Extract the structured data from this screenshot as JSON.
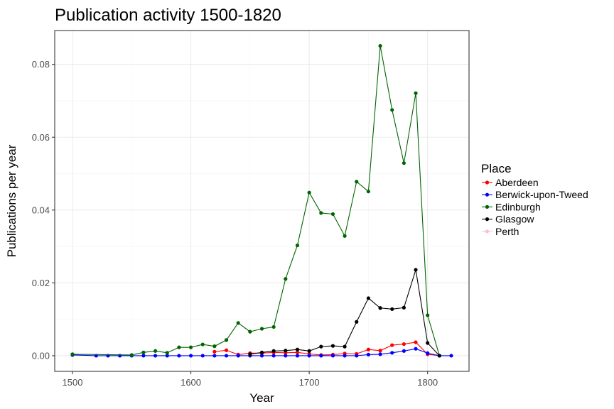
{
  "chart_data": {
    "type": "line",
    "title": "Publication activity 1500-1820",
    "xlabel": "Year",
    "ylabel": "Publications per year",
    "xlim": [
      1485,
      1835
    ],
    "ylim": [
      -0.0043,
      0.0893
    ],
    "x_ticks": [
      1500,
      1600,
      1700,
      1800
    ],
    "x_tick_labels": [
      "1500",
      "1600",
      "1700",
      "1800"
    ],
    "y_ticks": [
      0,
      0.02,
      0.04,
      0.06,
      0.08
    ],
    "y_tick_labels": [
      "0.00",
      "0.02",
      "0.04",
      "0.06",
      "0.08"
    ],
    "grid": true,
    "legend": {
      "title": "Place",
      "position": "right"
    },
    "series": [
      {
        "name": "Aberdeen",
        "color": "#ff0000",
        "x": [
          1620,
          1630,
          1640,
          1650,
          1660,
          1670,
          1680,
          1690,
          1700,
          1710,
          1720,
          1730,
          1740,
          1750,
          1760,
          1770,
          1780,
          1790,
          1800,
          1810
        ],
        "y": [
          0.0011,
          0.0015,
          0.0003,
          0.0007,
          0.0007,
          0.0009,
          0.0008,
          0.0009,
          0.0005,
          0.0002,
          0.0003,
          0.0006,
          0.0005,
          0.0017,
          0.0014,
          0.0029,
          0.0032,
          0.0037,
          0.0004,
          0.0
        ]
      },
      {
        "name": "Berwick-upon-Tweed",
        "color": "#0000ff",
        "x": [
          1500,
          1520,
          1530,
          1540,
          1550,
          1560,
          1570,
          1580,
          1590,
          1600,
          1610,
          1620,
          1630,
          1640,
          1650,
          1660,
          1670,
          1680,
          1690,
          1700,
          1710,
          1720,
          1730,
          1740,
          1750,
          1760,
          1770,
          1780,
          1790,
          1800,
          1810,
          1820
        ],
        "y": [
          0.0002,
          0.0,
          0.0,
          0.0,
          0.0,
          0.0,
          0.0,
          0.0,
          0.0,
          0.0,
          0.0,
          0.0,
          0.0,
          0.0,
          0.0,
          0.0,
          0.0,
          0.0,
          0.0,
          0.0,
          0.0,
          0.0,
          0.0,
          0.0,
          0.0003,
          0.0004,
          0.0008,
          0.0013,
          0.0019,
          0.0007,
          0.0,
          0.0
        ]
      },
      {
        "name": "Edinburgh",
        "color": "#006400",
        "x": [
          1500,
          1550,
          1560,
          1570,
          1580,
          1590,
          1600,
          1610,
          1620,
          1630,
          1640,
          1650,
          1660,
          1670,
          1680,
          1690,
          1700,
          1710,
          1720,
          1730,
          1740,
          1750,
          1760,
          1770,
          1780,
          1790,
          1800,
          1810
        ],
        "y": [
          0.0004,
          0.0002,
          0.0009,
          0.0013,
          0.0008,
          0.0023,
          0.0023,
          0.0031,
          0.0026,
          0.0043,
          0.009,
          0.0066,
          0.0074,
          0.0079,
          0.0211,
          0.0303,
          0.0448,
          0.0392,
          0.0389,
          0.0329,
          0.0478,
          0.0451,
          0.0851,
          0.0675,
          0.0529,
          0.0721,
          0.0111,
          0.0
        ]
      },
      {
        "name": "Glasgow",
        "color": "#000000",
        "x": [
          1650,
          1660,
          1670,
          1680,
          1690,
          1700,
          1710,
          1720,
          1730,
          1740,
          1750,
          1760,
          1770,
          1780,
          1790,
          1800,
          1810
        ],
        "y": [
          0.0004,
          0.0009,
          0.0013,
          0.0014,
          0.0017,
          0.0013,
          0.0025,
          0.0027,
          0.0025,
          0.0093,
          0.0158,
          0.0131,
          0.0128,
          0.0132,
          0.0236,
          0.0035,
          0.0
        ]
      },
      {
        "name": "Perth",
        "color": "#ffc0cb",
        "x": [],
        "y": []
      }
    ]
  }
}
